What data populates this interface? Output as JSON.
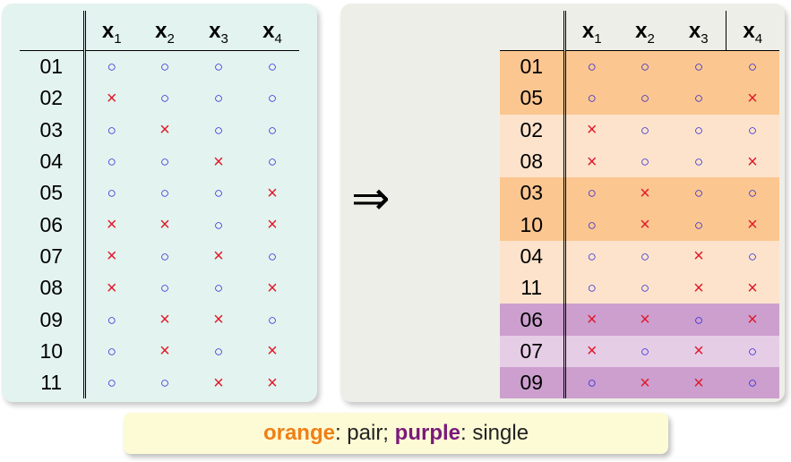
{
  "headers": [
    {
      "base": "x",
      "sub": "1"
    },
    {
      "base": "x",
      "sub": "2"
    },
    {
      "base": "x",
      "sub": "3"
    },
    {
      "base": "x",
      "sub": "4"
    }
  ],
  "left_rows": [
    {
      "id": "01",
      "vals": [
        "o",
        "o",
        "o",
        "o"
      ]
    },
    {
      "id": "02",
      "vals": [
        "x",
        "o",
        "o",
        "o"
      ]
    },
    {
      "id": "03",
      "vals": [
        "o",
        "x",
        "o",
        "o"
      ]
    },
    {
      "id": "04",
      "vals": [
        "o",
        "o",
        "x",
        "o"
      ]
    },
    {
      "id": "05",
      "vals": [
        "o",
        "o",
        "o",
        "x"
      ]
    },
    {
      "id": "06",
      "vals": [
        "x",
        "x",
        "o",
        "x"
      ]
    },
    {
      "id": "07",
      "vals": [
        "x",
        "o",
        "x",
        "o"
      ]
    },
    {
      "id": "08",
      "vals": [
        "x",
        "o",
        "o",
        "x"
      ]
    },
    {
      "id": "09",
      "vals": [
        "o",
        "x",
        "x",
        "o"
      ]
    },
    {
      "id": "10",
      "vals": [
        "o",
        "x",
        "o",
        "x"
      ]
    },
    {
      "id": "11",
      "vals": [
        "o",
        "o",
        "x",
        "x"
      ]
    }
  ],
  "right_rows": [
    {
      "id": "01",
      "vals": [
        "o",
        "o",
        "o",
        "o"
      ],
      "group": "pair-dark"
    },
    {
      "id": "05",
      "vals": [
        "o",
        "o",
        "o",
        "x"
      ],
      "group": "pair-dark"
    },
    {
      "id": "02",
      "vals": [
        "x",
        "o",
        "o",
        "o"
      ],
      "group": "pair-light"
    },
    {
      "id": "08",
      "vals": [
        "x",
        "o",
        "o",
        "x"
      ],
      "group": "pair-light"
    },
    {
      "id": "03",
      "vals": [
        "o",
        "x",
        "o",
        "o"
      ],
      "group": "pair-dark"
    },
    {
      "id": "10",
      "vals": [
        "o",
        "x",
        "o",
        "x"
      ],
      "group": "pair-dark"
    },
    {
      "id": "04",
      "vals": [
        "o",
        "o",
        "x",
        "o"
      ],
      "group": "pair-light"
    },
    {
      "id": "11",
      "vals": [
        "o",
        "o",
        "x",
        "x"
      ],
      "group": "pair-light"
    },
    {
      "id": "06",
      "vals": [
        "x",
        "x",
        "o",
        "x"
      ],
      "group": "single-dark"
    },
    {
      "id": "07",
      "vals": [
        "x",
        "o",
        "x",
        "o"
      ],
      "group": "single-light"
    },
    {
      "id": "09",
      "vals": [
        "o",
        "x",
        "x",
        "o"
      ],
      "group": "single-dark"
    }
  ],
  "symbols": {
    "o": "○",
    "x": "×"
  },
  "arrow": "⇒",
  "legend": {
    "orange_word": "orange",
    "orange_rest": ": pair; ",
    "purple_word": "purple",
    "purple_rest": ": single"
  },
  "colors": {
    "pair-dark": "#fbc690",
    "pair-light": "#fde3cc",
    "single-dark": "#cc9fcf",
    "single-light": "#e6cde6",
    "o_symbol": "#1a1ad6",
    "x_symbol": "#e0192a",
    "orange_text": "#f07f16",
    "purple_text": "#7a1a7a"
  }
}
